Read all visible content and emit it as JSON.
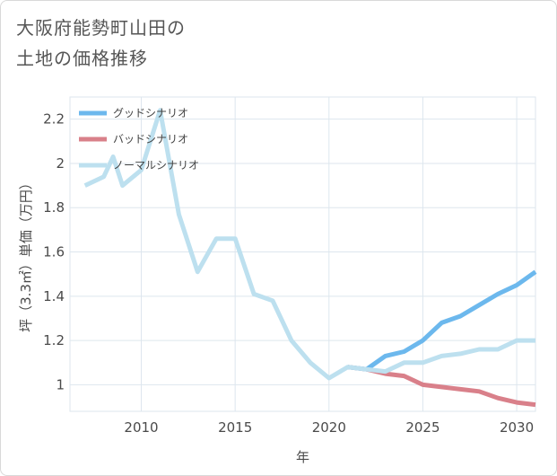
{
  "title": "大阪府能勢町山田の\n土地の価格推移",
  "chart_data": {
    "type": "line",
    "xlabel": "年",
    "ylabel": "坪（3.3㎡）単価（万円）",
    "xlim": [
      2006.2,
      2031
    ],
    "ylim": [
      0.88,
      2.3
    ],
    "xticks": [
      2010,
      2015,
      2020,
      2025,
      2030
    ],
    "yticks": [
      1,
      1.2,
      1.4,
      1.6,
      1.8,
      2,
      2.2
    ],
    "ytick_labels": [
      "1",
      "1.2",
      "1.4",
      "1.6",
      "1.8",
      "2",
      "2.2"
    ],
    "grid": true,
    "legend_position": "top-left",
    "series": [
      {
        "name": "グッドシナリオ",
        "color": "#6cb8ed",
        "x": [
          2021,
          2022,
          2023,
          2024,
          2025,
          2026,
          2027,
          2028,
          2029,
          2030,
          2031
        ],
        "y": [
          1.08,
          1.07,
          1.13,
          1.15,
          1.2,
          1.28,
          1.31,
          1.36,
          1.41,
          1.45,
          1.51
        ]
      },
      {
        "name": "バッドシナリオ",
        "color": "#d9808a",
        "x": [
          2021,
          2022,
          2023,
          2024,
          2025,
          2026,
          2027,
          2028,
          2029,
          2030,
          2031
        ],
        "y": [
          1.08,
          1.07,
          1.05,
          1.04,
          1.0,
          0.99,
          0.98,
          0.97,
          0.94,
          0.92,
          0.91
        ]
      },
      {
        "name": "ノーマルシナリオ",
        "color": "#bde0ef",
        "x": [
          2007,
          2008,
          2008.5,
          2009,
          2010,
          2011,
          2012,
          2013,
          2014,
          2015,
          2016,
          2017,
          2018,
          2019,
          2020,
          2021,
          2022,
          2023,
          2024,
          2025,
          2026,
          2027,
          2028,
          2029,
          2030,
          2031
        ],
        "y": [
          1.9,
          1.94,
          2.03,
          1.9,
          1.97,
          2.24,
          1.77,
          1.51,
          1.66,
          1.66,
          1.41,
          1.38,
          1.2,
          1.1,
          1.03,
          1.08,
          1.07,
          1.06,
          1.1,
          1.1,
          1.13,
          1.14,
          1.16,
          1.16,
          1.2,
          1.2
        ]
      }
    ]
  }
}
